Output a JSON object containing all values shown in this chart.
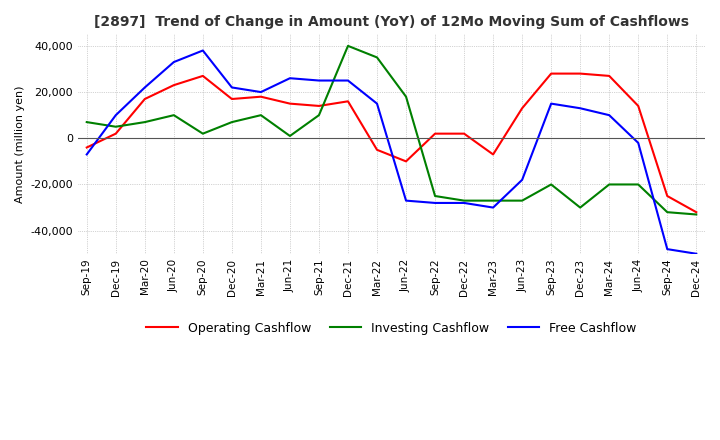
{
  "title": "[2897]  Trend of Change in Amount (YoY) of 12Mo Moving Sum of Cashflows",
  "ylabel": "Amount (million yen)",
  "ylim": [
    -50000,
    45000
  ],
  "yticks": [
    -40000,
    -20000,
    0,
    20000,
    40000
  ],
  "x_labels": [
    "Sep-19",
    "Dec-19",
    "Mar-20",
    "Jun-20",
    "Sep-20",
    "Dec-20",
    "Mar-21",
    "Jun-21",
    "Sep-21",
    "Dec-21",
    "Mar-22",
    "Jun-22",
    "Sep-22",
    "Dec-22",
    "Mar-23",
    "Jun-23",
    "Sep-23",
    "Dec-23",
    "Mar-24",
    "Jun-24",
    "Sep-24",
    "Dec-24"
  ],
  "operating": [
    -4000,
    2000,
    17000,
    23000,
    27000,
    17000,
    18000,
    15000,
    14000,
    16000,
    -5000,
    -10000,
    2000,
    2000,
    -7000,
    13000,
    28000,
    28000,
    27000,
    14000,
    -25000,
    -32000
  ],
  "investing": [
    7000,
    5000,
    7000,
    10000,
    2000,
    7000,
    10000,
    1000,
    10000,
    40000,
    35000,
    18000,
    -25000,
    -27000,
    -27000,
    -27000,
    -20000,
    -30000,
    -20000,
    -20000,
    -32000,
    -33000
  ],
  "free": [
    -7000,
    10000,
    22000,
    33000,
    38000,
    22000,
    20000,
    26000,
    25000,
    25000,
    15000,
    -27000,
    -28000,
    -28000,
    -30000,
    -18000,
    15000,
    13000,
    10000,
    -2000,
    -48000,
    -50000
  ],
  "operating_color": "#ff0000",
  "investing_color": "#008000",
  "free_color": "#0000ff",
  "legend_labels": [
    "Operating Cashflow",
    "Investing Cashflow",
    "Free Cashflow"
  ],
  "background_color": "#ffffff",
  "grid_color": "#aaaaaa"
}
